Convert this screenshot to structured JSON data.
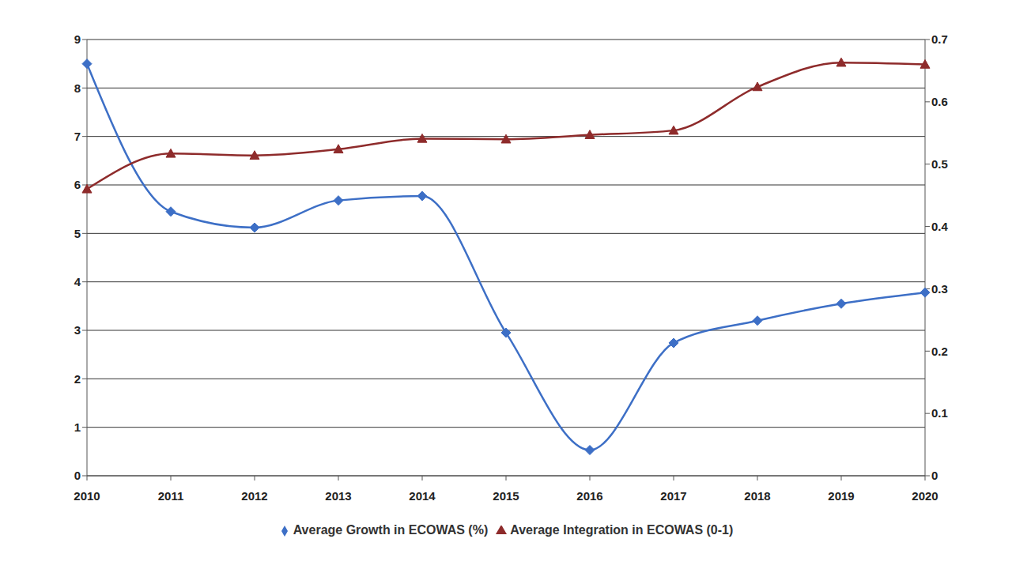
{
  "chart_data": {
    "type": "line",
    "categories": [
      "2010",
      "2011",
      "2012",
      "2013",
      "2014",
      "2015",
      "2016",
      "2017",
      "2018",
      "2019",
      "2020"
    ],
    "series": [
      {
        "name": "Average Growth in ECOWAS (%)",
        "color": "#3d6fc6",
        "marker": "diamond",
        "values": [
          8.5,
          5.45,
          5.12,
          5.68,
          5.77,
          2.95,
          0.53,
          2.74,
          3.2,
          3.55,
          3.78
        ]
      },
      {
        "name": "Average Integration in ECOWAS (0-1)",
        "color": "#8e2b2b",
        "marker": "triangle",
        "axis": "y2",
        "values": [
          0.46,
          0.517,
          0.514,
          0.524,
          0.541,
          0.54,
          0.547,
          0.554,
          0.624,
          0.663,
          0.66
        ]
      }
    ],
    "ylim": [
      0,
      9
    ],
    "yticks": [
      0,
      1,
      2,
      3,
      4,
      5,
      6,
      7,
      8,
      9
    ],
    "y2lim": [
      0,
      0.7
    ],
    "y2ticks": [
      0,
      0.1,
      0.2,
      0.3,
      0.4,
      0.5,
      0.6,
      0.7
    ],
    "grid": true,
    "legend": "bottom"
  }
}
